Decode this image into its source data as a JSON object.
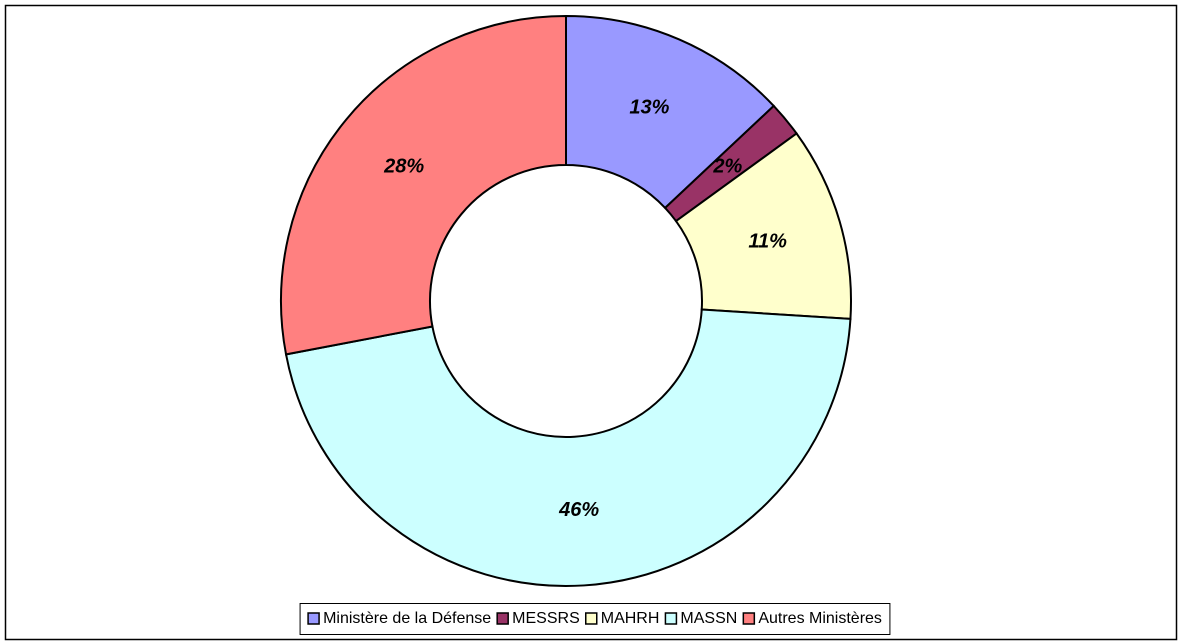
{
  "chart_data": {
    "type": "donut",
    "categories": [
      "Ministère de la Défense",
      "MESSRS",
      "MAHRH",
      "MASSN",
      "Autres Ministères"
    ],
    "values": [
      13,
      2,
      11,
      46,
      28
    ],
    "value_labels": [
      "13%",
      "2%",
      "11%",
      "46%",
      "28%"
    ],
    "colors": [
      "#9999ff",
      "#993366",
      "#ffffcc",
      "#ccffff",
      "#ff8080"
    ],
    "legend": "bottom"
  }
}
